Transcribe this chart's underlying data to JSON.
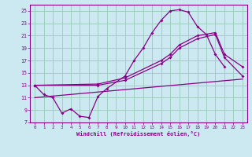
{
  "xlabel": "Windchill (Refroidissement éolien,°C)",
  "bg_color": "#cce8f0",
  "grid_color": "#99ccbb",
  "line_color": "#880088",
  "xlim": [
    -0.5,
    23.5
  ],
  "ylim": [
    7,
    26
  ],
  "xticks": [
    0,
    1,
    2,
    3,
    4,
    5,
    6,
    7,
    8,
    9,
    10,
    11,
    12,
    13,
    14,
    15,
    16,
    17,
    18,
    19,
    20,
    21,
    22,
    23
  ],
  "yticks": [
    7,
    9,
    11,
    13,
    15,
    17,
    19,
    21,
    23,
    25
  ],
  "series1_x": [
    0,
    1,
    2,
    3,
    4,
    5,
    6,
    7,
    8,
    10,
    11,
    12,
    13,
    14,
    15,
    16,
    17,
    18,
    19,
    20,
    21
  ],
  "series1_y": [
    13.0,
    11.5,
    11.0,
    8.5,
    9.2,
    8.0,
    7.8,
    11.2,
    12.5,
    14.5,
    17.0,
    19.0,
    21.5,
    23.5,
    25.0,
    25.2,
    24.8,
    22.5,
    21.2,
    18.0,
    16.0
  ],
  "series2_x": [
    0,
    7,
    10,
    14,
    15,
    16,
    18,
    20,
    21,
    23
  ],
  "series2_y": [
    13.0,
    13.2,
    14.2,
    17.0,
    18.0,
    19.5,
    21.0,
    21.5,
    18.0,
    16.0
  ],
  "series3_x": [
    0,
    7,
    10,
    14,
    15,
    16,
    18,
    20,
    21,
    23
  ],
  "series3_y": [
    13.0,
    13.0,
    13.8,
    16.5,
    17.5,
    19.0,
    20.5,
    21.2,
    17.5,
    14.5
  ],
  "series4_x": [
    0,
    23
  ],
  "series4_y": [
    11.0,
    14.0
  ]
}
